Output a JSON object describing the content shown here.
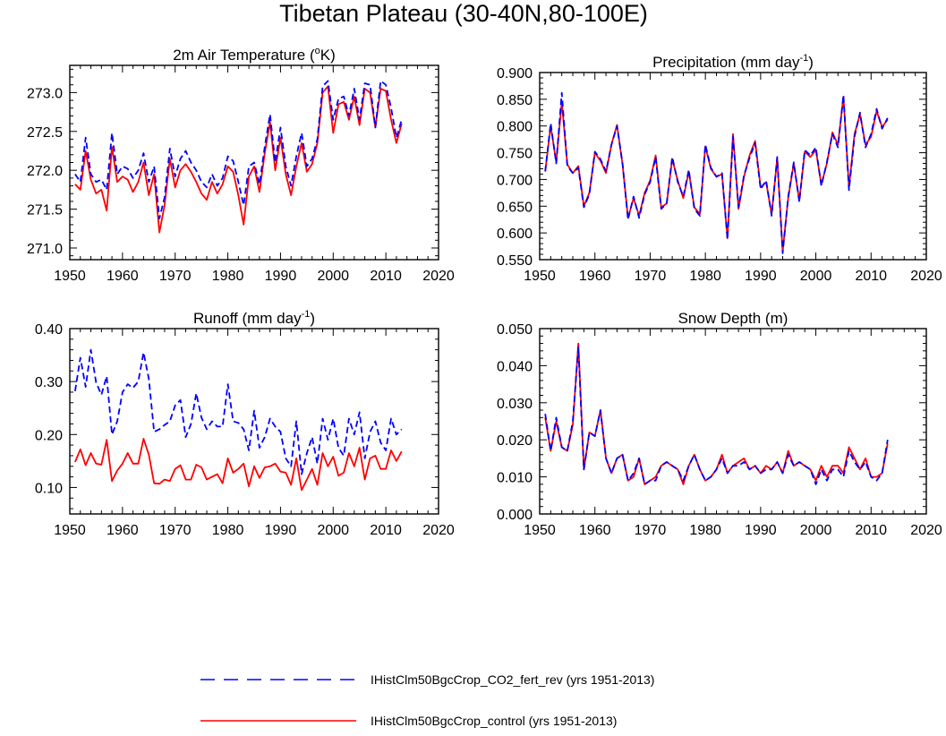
{
  "title": "Tibetan Plateau (30-40N,80-100E)",
  "chart_data": [
    {
      "id": "temp",
      "type": "line",
      "title": "2m Air Temperature (",
      "title_sup": "o",
      "title_tail": "K)",
      "xlim": [
        1950,
        2020
      ],
      "ylim": [
        270.85,
        273.35
      ],
      "xticks": [
        1950,
        1960,
        1970,
        1980,
        1990,
        2000,
        2010,
        2020
      ],
      "yticks": [
        271.0,
        271.5,
        272.0,
        272.5,
        273.0
      ],
      "ytick_labels": [
        "271.0",
        "271.5",
        "272.0",
        "272.5",
        "273.0"
      ],
      "x_start": 1951,
      "series": [
        {
          "name": "IHistClm50BgcCrop_CO2_fert_rev",
          "color": "#0000ff",
          "style": "dashed",
          "values": [
            271.95,
            271.85,
            272.42,
            271.95,
            271.85,
            271.88,
            271.75,
            272.48,
            271.95,
            272.05,
            272.02,
            271.9,
            272.0,
            272.22,
            271.85,
            272.05,
            271.38,
            271.65,
            272.28,
            271.92,
            272.15,
            272.25,
            272.1,
            272.0,
            271.85,
            271.78,
            271.95,
            271.8,
            271.9,
            272.18,
            272.12,
            271.85,
            271.55,
            272.05,
            272.1,
            271.82,
            272.3,
            272.72,
            272.1,
            272.55,
            272.05,
            271.8,
            272.18,
            272.48,
            272.05,
            272.15,
            272.4,
            273.08,
            273.15,
            272.65,
            272.92,
            272.95,
            272.7,
            273.05,
            272.65,
            273.12,
            273.1,
            272.55,
            273.15,
            273.1,
            272.8,
            272.42,
            272.65
          ]
        },
        {
          "name": "IHistClm50BgcCrop_control",
          "color": "#ff0000",
          "style": "solid",
          "values": [
            271.82,
            271.75,
            272.25,
            271.88,
            271.7,
            271.75,
            271.48,
            272.3,
            271.85,
            271.92,
            271.88,
            271.72,
            271.85,
            272.1,
            271.68,
            271.95,
            271.2,
            271.55,
            272.15,
            271.78,
            272.0,
            272.08,
            271.98,
            271.85,
            271.7,
            271.62,
            271.85,
            271.7,
            271.82,
            272.05,
            271.98,
            271.68,
            271.3,
            271.92,
            272.05,
            271.72,
            272.22,
            272.62,
            272.0,
            272.42,
            271.95,
            271.68,
            272.05,
            272.35,
            271.98,
            272.08,
            272.35,
            273.0,
            273.08,
            272.48,
            272.85,
            272.88,
            272.65,
            272.95,
            272.58,
            273.05,
            273.0,
            272.55,
            273.05,
            273.02,
            272.65,
            272.35,
            272.6
          ]
        }
      ]
    },
    {
      "id": "precip",
      "type": "line",
      "title": "Precipitation (mm day",
      "title_sup": "-1",
      "title_tail": ")",
      "xlim": [
        1950,
        2020
      ],
      "ylim": [
        0.55,
        0.9
      ],
      "xticks": [
        1950,
        1960,
        1970,
        1980,
        1990,
        2000,
        2010,
        2020
      ],
      "yticks": [
        0.55,
        0.6,
        0.65,
        0.7,
        0.75,
        0.8,
        0.85,
        0.9
      ],
      "ytick_labels": [
        "0.550",
        "0.600",
        "0.650",
        "0.700",
        "0.750",
        "0.800",
        "0.850",
        "0.900"
      ],
      "x_start": 1951,
      "series": [
        {
          "name": "IHistClm50BgcCrop_CO2_fert_rev",
          "color": "#0000ff",
          "style": "dashed",
          "values": [
            0.715,
            0.805,
            0.73,
            0.862,
            0.725,
            0.712,
            0.722,
            0.648,
            0.672,
            0.752,
            0.738,
            0.715,
            0.765,
            0.8,
            0.73,
            0.625,
            0.668,
            0.628,
            0.672,
            0.695,
            0.742,
            0.645,
            0.655,
            0.742,
            0.695,
            0.668,
            0.718,
            0.645,
            0.632,
            0.765,
            0.722,
            0.705,
            0.712,
            0.588,
            0.78,
            0.648,
            0.708,
            0.74,
            0.768,
            0.682,
            0.698,
            0.632,
            0.742,
            0.562,
            0.668,
            0.732,
            0.658,
            0.755,
            0.745,
            0.76,
            0.688,
            0.732,
            0.785,
            0.76,
            0.858,
            0.68,
            0.78,
            0.825,
            0.76,
            0.785,
            0.832,
            0.795,
            0.815
          ]
        },
        {
          "name": "IHistClm50BgcCrop_control",
          "color": "#ff0000",
          "style": "solid",
          "values": [
            0.715,
            0.8,
            0.732,
            0.845,
            0.728,
            0.712,
            0.725,
            0.65,
            0.675,
            0.75,
            0.735,
            0.712,
            0.765,
            0.802,
            0.728,
            0.628,
            0.665,
            0.632,
            0.675,
            0.698,
            0.745,
            0.648,
            0.655,
            0.738,
            0.698,
            0.665,
            0.715,
            0.648,
            0.635,
            0.762,
            0.72,
            0.705,
            0.71,
            0.59,
            0.785,
            0.645,
            0.705,
            0.745,
            0.772,
            0.685,
            0.695,
            0.635,
            0.74,
            0.565,
            0.665,
            0.73,
            0.66,
            0.752,
            0.742,
            0.755,
            0.69,
            0.73,
            0.788,
            0.765,
            0.855,
            0.685,
            0.785,
            0.822,
            0.765,
            0.78,
            0.828,
            0.798,
            0.812
          ]
        }
      ]
    },
    {
      "id": "runoff",
      "type": "line",
      "title": "Runoff (mm day",
      "title_sup": "-1",
      "title_tail": ")",
      "xlim": [
        1950,
        2020
      ],
      "ylim": [
        0.05,
        0.4
      ],
      "xticks": [
        1950,
        1960,
        1970,
        1980,
        1990,
        2000,
        2010,
        2020
      ],
      "yticks": [
        0.1,
        0.2,
        0.3,
        0.4
      ],
      "ytick_labels": [
        "0.10",
        "0.20",
        "0.30",
        "0.40"
      ],
      "x_start": 1951,
      "series": [
        {
          "name": "IHistClm50BgcCrop_CO2_fert_rev",
          "color": "#0000ff",
          "style": "dashed",
          "values": [
            0.282,
            0.345,
            0.29,
            0.36,
            0.298,
            0.275,
            0.31,
            0.2,
            0.225,
            0.28,
            0.295,
            0.288,
            0.3,
            0.355,
            0.305,
            0.205,
            0.21,
            0.218,
            0.225,
            0.255,
            0.265,
            0.195,
            0.22,
            0.278,
            0.232,
            0.21,
            0.225,
            0.215,
            0.215,
            0.295,
            0.225,
            0.222,
            0.21,
            0.17,
            0.245,
            0.175,
            0.195,
            0.23,
            0.215,
            0.205,
            0.155,
            0.14,
            0.225,
            0.125,
            0.165,
            0.195,
            0.145,
            0.23,
            0.19,
            0.23,
            0.175,
            0.16,
            0.23,
            0.2,
            0.242,
            0.155,
            0.205,
            0.225,
            0.185,
            0.17,
            0.23,
            0.2,
            0.21
          ]
        },
        {
          "name": "IHistClm50BgcCrop_control",
          "color": "#ff0000",
          "style": "solid",
          "values": [
            0.148,
            0.172,
            0.142,
            0.165,
            0.145,
            0.143,
            0.19,
            0.112,
            0.132,
            0.145,
            0.165,
            0.145,
            0.145,
            0.192,
            0.162,
            0.108,
            0.107,
            0.115,
            0.112,
            0.135,
            0.142,
            0.115,
            0.115,
            0.143,
            0.138,
            0.115,
            0.12,
            0.125,
            0.108,
            0.155,
            0.128,
            0.135,
            0.145,
            0.102,
            0.14,
            0.118,
            0.138,
            0.14,
            0.145,
            0.13,
            0.128,
            0.105,
            0.155,
            0.095,
            0.115,
            0.135,
            0.105,
            0.165,
            0.14,
            0.158,
            0.122,
            0.128,
            0.165,
            0.14,
            0.175,
            0.115,
            0.155,
            0.16,
            0.135,
            0.135,
            0.17,
            0.15,
            0.168
          ]
        }
      ]
    },
    {
      "id": "snow",
      "type": "line",
      "title": "Snow Depth (m)",
      "title_sup": "",
      "title_tail": "",
      "xlim": [
        1950,
        2020
      ],
      "ylim": [
        0.0,
        0.05
      ],
      "xticks": [
        1950,
        1960,
        1970,
        1980,
        1990,
        2000,
        2010,
        2020
      ],
      "yticks": [
        0.0,
        0.01,
        0.02,
        0.03,
        0.04,
        0.05
      ],
      "ytick_labels": [
        "0.000",
        "0.010",
        "0.020",
        "0.030",
        "0.040",
        "0.050"
      ],
      "x_start": 1951,
      "series": [
        {
          "name": "IHistClm50BgcCrop_CO2_fert_rev",
          "color": "#0000ff",
          "style": "dashed",
          "values": [
            0.027,
            0.017,
            0.026,
            0.018,
            0.017,
            0.025,
            0.045,
            0.012,
            0.022,
            0.021,
            0.028,
            0.015,
            0.011,
            0.015,
            0.016,
            0.009,
            0.011,
            0.015,
            0.008,
            0.009,
            0.009,
            0.013,
            0.014,
            0.013,
            0.012,
            0.009,
            0.013,
            0.016,
            0.012,
            0.009,
            0.01,
            0.012,
            0.015,
            0.011,
            0.013,
            0.013,
            0.014,
            0.012,
            0.013,
            0.011,
            0.012,
            0.012,
            0.014,
            0.011,
            0.016,
            0.013,
            0.014,
            0.013,
            0.012,
            0.008,
            0.012,
            0.009,
            0.012,
            0.012,
            0.01,
            0.017,
            0.014,
            0.012,
            0.014,
            0.01,
            0.009,
            0.011,
            0.02
          ]
        },
        {
          "name": "IHistClm50BgcCrop_control",
          "color": "#ff0000",
          "style": "solid",
          "values": [
            0.026,
            0.017,
            0.025,
            0.018,
            0.017,
            0.024,
            0.046,
            0.012,
            0.022,
            0.021,
            0.028,
            0.015,
            0.011,
            0.015,
            0.016,
            0.009,
            0.01,
            0.015,
            0.008,
            0.009,
            0.01,
            0.013,
            0.014,
            0.013,
            0.012,
            0.008,
            0.013,
            0.016,
            0.012,
            0.009,
            0.01,
            0.012,
            0.016,
            0.011,
            0.013,
            0.014,
            0.015,
            0.012,
            0.013,
            0.011,
            0.013,
            0.012,
            0.014,
            0.011,
            0.017,
            0.013,
            0.014,
            0.013,
            0.012,
            0.009,
            0.013,
            0.01,
            0.013,
            0.013,
            0.011,
            0.018,
            0.015,
            0.012,
            0.015,
            0.01,
            0.01,
            0.011,
            0.019
          ]
        }
      ]
    }
  ],
  "legend": {
    "items": [
      {
        "label": "IHistClm50BgcCrop_CO2_fert_rev (yrs 1951-2013)",
        "color": "#0000ff",
        "style": "dashed"
      },
      {
        "label": "IHistClm50BgcCrop_control (yrs 1951-2013)",
        "color": "#ff0000",
        "style": "solid"
      }
    ]
  }
}
